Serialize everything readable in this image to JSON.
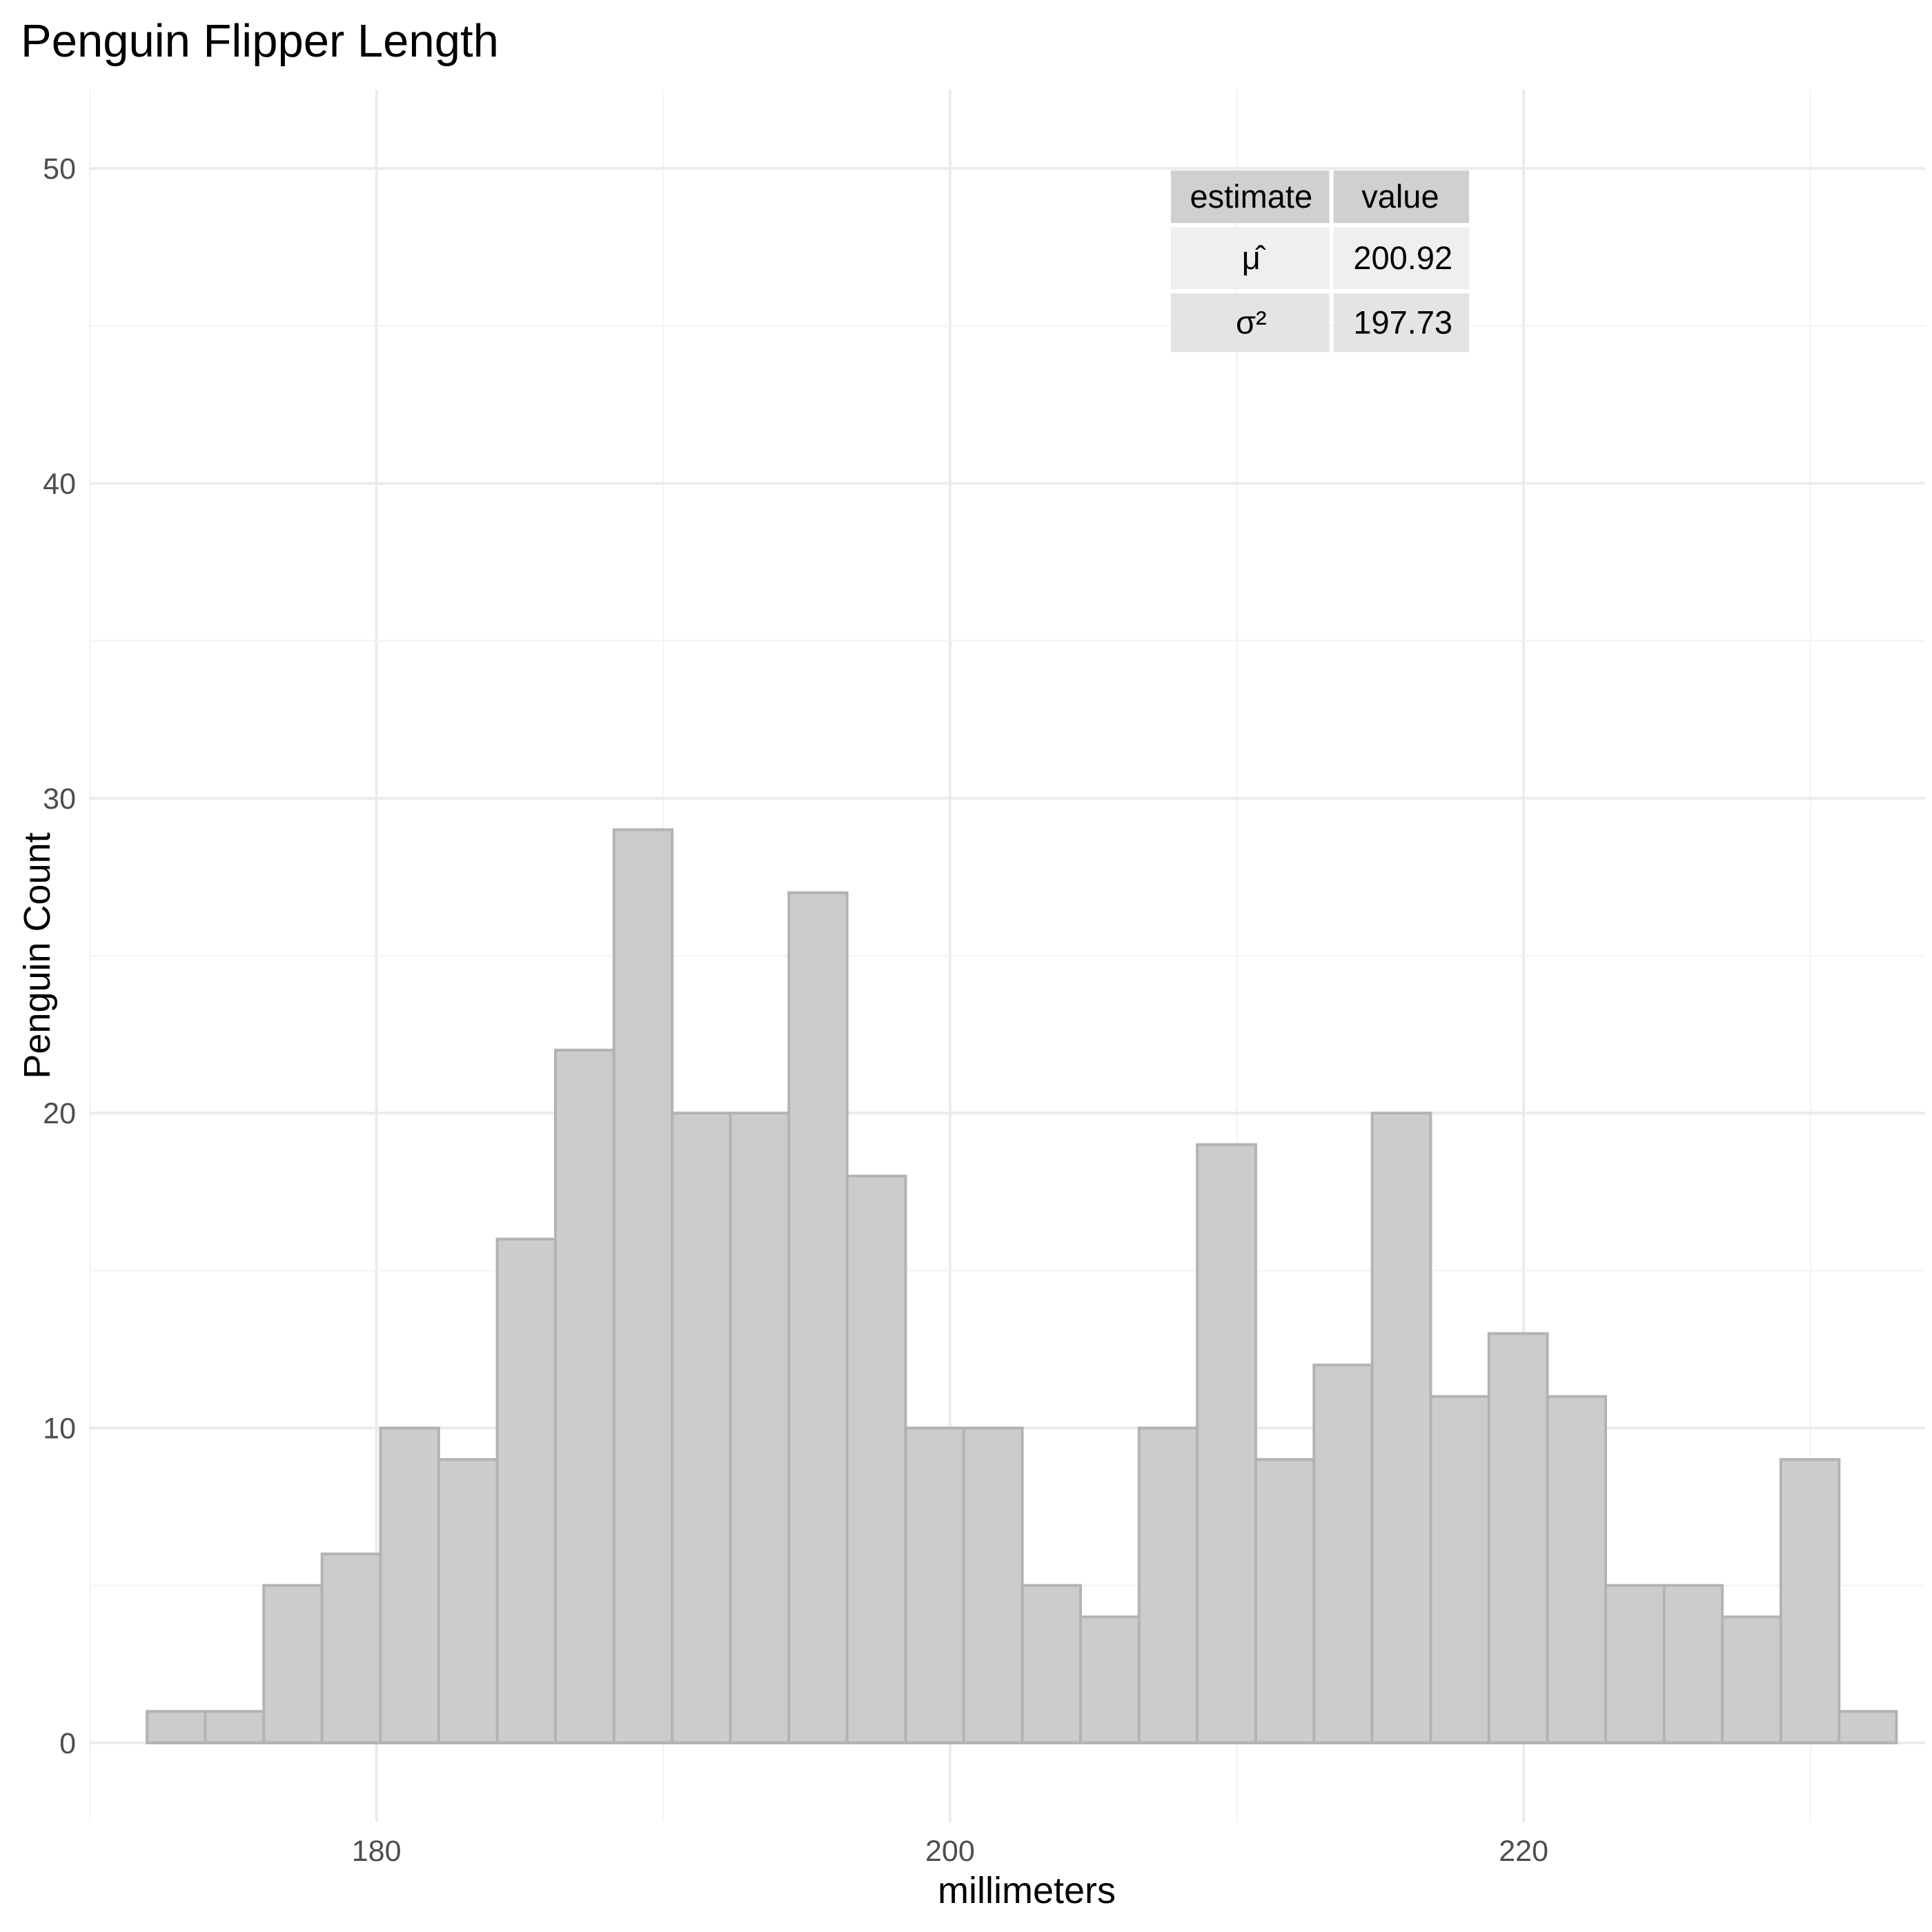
{
  "chart_data": {
    "type": "bar",
    "title": "Penguin Flipper Length",
    "xlabel": "millimeters",
    "ylabel": "Penguin Count",
    "xlim": [
      170,
      234
    ],
    "ylim": [
      -2.5,
      52.5
    ],
    "x_ticks": [
      180,
      200,
      220
    ],
    "y_ticks": [
      0,
      10,
      20,
      30,
      40,
      50
    ],
    "grid": true,
    "bin_width": 2.0345,
    "bins": [
      {
        "x0": 172.0,
        "x1": 174.03,
        "count": 1
      },
      {
        "x0": 174.03,
        "x1": 176.07,
        "count": 1
      },
      {
        "x0": 176.07,
        "x1": 178.1,
        "count": 5
      },
      {
        "x0": 178.1,
        "x1": 180.14,
        "count": 6
      },
      {
        "x0": 180.14,
        "x1": 182.17,
        "count": 10
      },
      {
        "x0": 182.17,
        "x1": 184.21,
        "count": 9
      },
      {
        "x0": 184.21,
        "x1": 186.24,
        "count": 16
      },
      {
        "x0": 186.24,
        "x1": 188.28,
        "count": 22
      },
      {
        "x0": 188.28,
        "x1": 190.31,
        "count": 29
      },
      {
        "x0": 190.31,
        "x1": 192.34,
        "count": 20
      },
      {
        "x0": 192.34,
        "x1": 194.38,
        "count": 20
      },
      {
        "x0": 194.38,
        "x1": 196.41,
        "count": 27
      },
      {
        "x0": 196.41,
        "x1": 198.45,
        "count": 18
      },
      {
        "x0": 198.45,
        "x1": 200.48,
        "count": 10
      },
      {
        "x0": 200.48,
        "x1": 202.52,
        "count": 10
      },
      {
        "x0": 202.52,
        "x1": 204.55,
        "count": 5
      },
      {
        "x0": 204.55,
        "x1": 206.59,
        "count": 4
      },
      {
        "x0": 206.59,
        "x1": 208.62,
        "count": 10
      },
      {
        "x0": 208.62,
        "x1": 210.66,
        "count": 19
      },
      {
        "x0": 210.66,
        "x1": 212.69,
        "count": 9
      },
      {
        "x0": 212.69,
        "x1": 214.72,
        "count": 12
      },
      {
        "x0": 214.72,
        "x1": 216.76,
        "count": 20
      },
      {
        "x0": 216.76,
        "x1": 218.79,
        "count": 11
      },
      {
        "x0": 218.79,
        "x1": 220.83,
        "count": 13
      },
      {
        "x0": 220.83,
        "x1": 222.86,
        "count": 11
      },
      {
        "x0": 222.86,
        "x1": 224.9,
        "count": 5
      },
      {
        "x0": 224.9,
        "x1": 226.93,
        "count": 5
      },
      {
        "x0": 226.93,
        "x1": 228.97,
        "count": 4
      },
      {
        "x0": 228.97,
        "x1": 231.0,
        "count": 9
      },
      {
        "x0": 231.0,
        "x1": 233.0,
        "count": 1
      }
    ],
    "annotation_table": {
      "headers": [
        "estimate",
        "value"
      ],
      "rows": [
        {
          "estimate": "μ̂",
          "value": "200.92"
        },
        {
          "estimate": "σ²",
          "value": "197.73"
        }
      ]
    },
    "colors": {
      "bar_fill": "#cccccc",
      "bar_stroke": "#b3b3b3",
      "table_header": "#d0d0d0",
      "table_row1": "#efefef",
      "table_row2": "#e4e4e4"
    }
  }
}
